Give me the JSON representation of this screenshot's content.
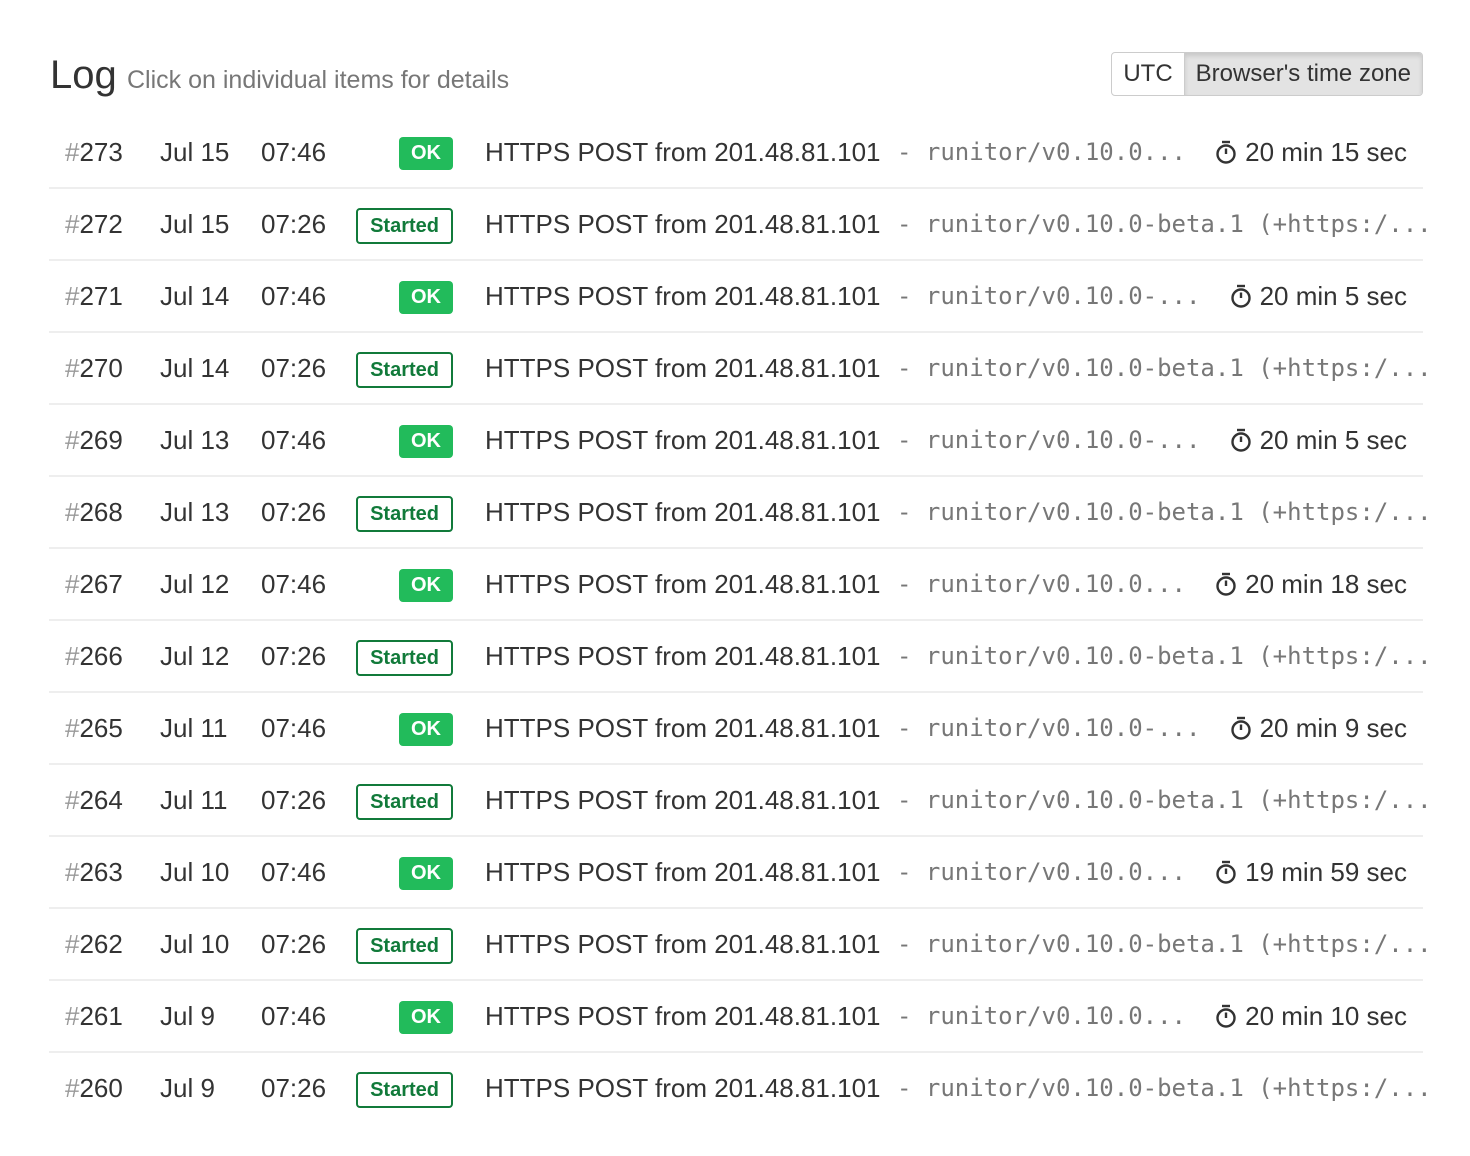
{
  "header": {
    "title": "Log",
    "subtitle": "Click on individual items for details"
  },
  "timezone": {
    "options": [
      "UTC",
      "Browser's time zone"
    ],
    "selected": "Browser's time zone"
  },
  "colors": {
    "ok": "#22bb5b",
    "started": "#117a3a"
  },
  "rows": [
    {
      "num": "273",
      "date": "Jul 15",
      "time": "07:46",
      "status": "OK",
      "message": "HTTPS POST from 201.48.81.101",
      "ua": "- runitor/v0.10.0...",
      "duration": "20 min 15 sec"
    },
    {
      "num": "272",
      "date": "Jul 15",
      "time": "07:26",
      "status": "Started",
      "message": "HTTPS POST from 201.48.81.101",
      "ua": "- runitor/v0.10.0-beta.1 (+https:/...",
      "duration": ""
    },
    {
      "num": "271",
      "date": "Jul 14",
      "time": "07:46",
      "status": "OK",
      "message": "HTTPS POST from 201.48.81.101",
      "ua": "- runitor/v0.10.0-...",
      "duration": "20 min 5 sec"
    },
    {
      "num": "270",
      "date": "Jul 14",
      "time": "07:26",
      "status": "Started",
      "message": "HTTPS POST from 201.48.81.101",
      "ua": "- runitor/v0.10.0-beta.1 (+https:/...",
      "duration": ""
    },
    {
      "num": "269",
      "date": "Jul 13",
      "time": "07:46",
      "status": "OK",
      "message": "HTTPS POST from 201.48.81.101",
      "ua": "- runitor/v0.10.0-...",
      "duration": "20 min 5 sec"
    },
    {
      "num": "268",
      "date": "Jul 13",
      "time": "07:26",
      "status": "Started",
      "message": "HTTPS POST from 201.48.81.101",
      "ua": "- runitor/v0.10.0-beta.1 (+https:/...",
      "duration": ""
    },
    {
      "num": "267",
      "date": "Jul 12",
      "time": "07:46",
      "status": "OK",
      "message": "HTTPS POST from 201.48.81.101",
      "ua": "- runitor/v0.10.0...",
      "duration": "20 min 18 sec"
    },
    {
      "num": "266",
      "date": "Jul 12",
      "time": "07:26",
      "status": "Started",
      "message": "HTTPS POST from 201.48.81.101",
      "ua": "- runitor/v0.10.0-beta.1 (+https:/...",
      "duration": ""
    },
    {
      "num": "265",
      "date": "Jul 11",
      "time": "07:46",
      "status": "OK",
      "message": "HTTPS POST from 201.48.81.101",
      "ua": "- runitor/v0.10.0-...",
      "duration": "20 min 9 sec"
    },
    {
      "num": "264",
      "date": "Jul 11",
      "time": "07:26",
      "status": "Started",
      "message": "HTTPS POST from 201.48.81.101",
      "ua": "- runitor/v0.10.0-beta.1 (+https:/...",
      "duration": ""
    },
    {
      "num": "263",
      "date": "Jul 10",
      "time": "07:46",
      "status": "OK",
      "message": "HTTPS POST from 201.48.81.101",
      "ua": "- runitor/v0.10.0...",
      "duration": "19 min 59 sec"
    },
    {
      "num": "262",
      "date": "Jul 10",
      "time": "07:26",
      "status": "Started",
      "message": "HTTPS POST from 201.48.81.101",
      "ua": "- runitor/v0.10.0-beta.1 (+https:/...",
      "duration": ""
    },
    {
      "num": "261",
      "date": "Jul 9",
      "time": "07:46",
      "status": "OK",
      "message": "HTTPS POST from 201.48.81.101",
      "ua": "- runitor/v0.10.0...",
      "duration": "20 min 10 sec"
    },
    {
      "num": "260",
      "date": "Jul 9",
      "time": "07:26",
      "status": "Started",
      "message": "HTTPS POST from 201.48.81.101",
      "ua": "- runitor/v0.10.0-beta.1 (+https:/...",
      "duration": ""
    }
  ]
}
